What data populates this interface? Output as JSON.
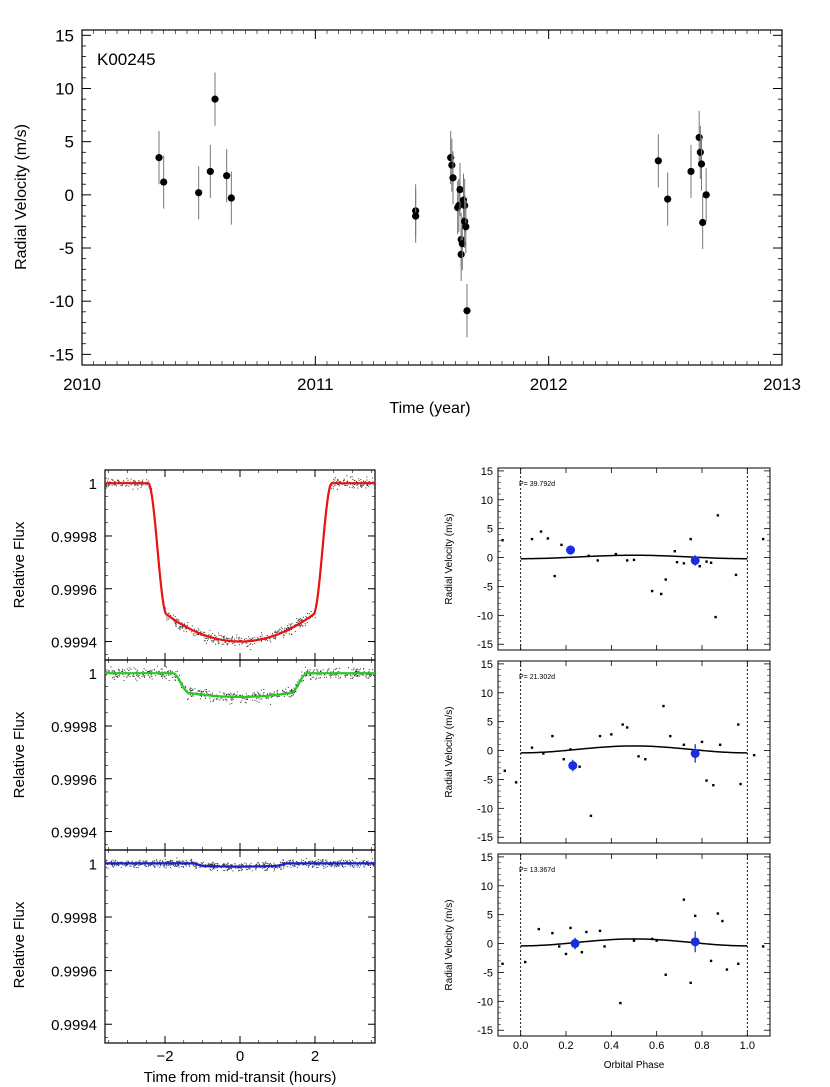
{
  "chart_data": [
    {
      "type": "scatter",
      "title": "K00245",
      "xlabel": "Time (year)",
      "ylabel": "Radial Velocity (m/s)",
      "xlim": [
        2010,
        2013
      ],
      "ylim": [
        -16,
        15.5
      ],
      "xticks": [
        2010,
        2011,
        2012,
        2013
      ],
      "xtick_labels": [
        "2010",
        "2011",
        "2012",
        "2013"
      ],
      "yticks": [
        15,
        10,
        5,
        0,
        -5,
        -10,
        -15
      ],
      "ytick_labels": [
        "15",
        "10",
        "5",
        "0",
        "-5",
        "-10",
        "-15"
      ],
      "points": [
        {
          "x": 2010.33,
          "y": 3.5,
          "err": 2.5
        },
        {
          "x": 2010.35,
          "y": 1.2,
          "err": 2.5
        },
        {
          "x": 2010.5,
          "y": 0.2,
          "err": 2.5
        },
        {
          "x": 2010.55,
          "y": 2.2,
          "err": 2.5
        },
        {
          "x": 2010.57,
          "y": 9.0,
          "err": 2.5
        },
        {
          "x": 2010.62,
          "y": 1.8,
          "err": 2.5
        },
        {
          "x": 2010.64,
          "y": -0.3,
          "err": 2.5
        },
        {
          "x": 2011.43,
          "y": -1.5,
          "err": 2.5
        },
        {
          "x": 2011.43,
          "y": -2.0,
          "err": 2.5
        },
        {
          "x": 2011.58,
          "y": 3.5,
          "err": 2.5
        },
        {
          "x": 2011.585,
          "y": 2.8,
          "err": 2.5
        },
        {
          "x": 2011.59,
          "y": 1.6,
          "err": 2.5
        },
        {
          "x": 2011.61,
          "y": -1.2,
          "err": 2.5
        },
        {
          "x": 2011.615,
          "y": -1.0,
          "err": 2.5
        },
        {
          "x": 2011.62,
          "y": 0.5,
          "err": 2.5
        },
        {
          "x": 2011.625,
          "y": -4.2,
          "err": 2.5
        },
        {
          "x": 2011.625,
          "y": -5.6,
          "err": 2.5
        },
        {
          "x": 2011.63,
          "y": -4.6,
          "err": 2.5
        },
        {
          "x": 2011.635,
          "y": -0.5,
          "err": 2.5
        },
        {
          "x": 2011.64,
          "y": -1.0,
          "err": 2.5
        },
        {
          "x": 2011.64,
          "y": -2.5,
          "err": 2.5
        },
        {
          "x": 2011.645,
          "y": -3.0,
          "err": 2.5
        },
        {
          "x": 2011.65,
          "y": -10.9,
          "err": 2.5
        },
        {
          "x": 2012.47,
          "y": 3.2,
          "err": 2.5
        },
        {
          "x": 2012.51,
          "y": -0.4,
          "err": 2.5
        },
        {
          "x": 2012.61,
          "y": 2.2,
          "err": 2.5
        },
        {
          "x": 2012.645,
          "y": 5.4,
          "err": 2.5
        },
        {
          "x": 2012.65,
          "y": 4.0,
          "err": 2.5
        },
        {
          "x": 2012.655,
          "y": 2.9,
          "err": 2.5
        },
        {
          "x": 2012.66,
          "y": -2.6,
          "err": 2.5
        },
        {
          "x": 2012.675,
          "y": 0.0,
          "err": 2.5
        }
      ]
    },
    {
      "type": "scatter",
      "subtype": "transit-light-curve",
      "title": "",
      "xlabel": "",
      "ylabel": "Relative Flux",
      "xlim": [
        -3.6,
        3.6
      ],
      "ylim": [
        0.99933,
        1.00005
      ],
      "xticks": [
        -2,
        0,
        2
      ],
      "yticks": [
        1,
        0.9998,
        0.9996,
        0.9994
      ],
      "ytick_labels": [
        "1",
        "0.9998",
        "0.9996",
        "0.9994"
      ],
      "model_color": "#ee1111",
      "model": {
        "depth": 0.0006,
        "half_duration_hours": 2.45,
        "ingress_hours": 0.5
      }
    },
    {
      "type": "scatter",
      "subtype": "transit-light-curve",
      "title": "",
      "xlabel": "",
      "ylabel": "Relative Flux",
      "xlim": [
        -3.6,
        3.6
      ],
      "ylim": [
        0.99933,
        1.00005
      ],
      "xticks": [
        -2,
        0,
        2
      ],
      "yticks": [
        1,
        0.9998,
        0.9996,
        0.9994
      ],
      "ytick_labels": [
        "1",
        "0.9998",
        "0.9996",
        "0.9994"
      ],
      "model_color": "#22cc22",
      "model": {
        "depth": 9e-05,
        "half_duration_hours": 1.8,
        "ingress_hours": 0.45
      }
    },
    {
      "type": "scatter",
      "subtype": "transit-light-curve",
      "title": "",
      "xlabel": "Time from mid-transit (hours)",
      "ylabel": "Relative Flux",
      "xlim": [
        -3.6,
        3.6
      ],
      "ylim": [
        0.99933,
        1.00005
      ],
      "xticks": [
        -2,
        0,
        2
      ],
      "xtick_labels": [
        "−2",
        "0",
        "2"
      ],
      "yticks": [
        1,
        0.9998,
        0.9996,
        0.9994
      ],
      "ytick_labels": [
        "1",
        "0.9998",
        "0.9996",
        "0.9994"
      ],
      "model_color": "#1a22cc",
      "model": {
        "depth": 1.2e-05,
        "half_duration_hours": 1.3,
        "ingress_hours": 0.4
      }
    },
    {
      "type": "scatter",
      "subtype": "phased-rv",
      "annotation": "P= 39.792d",
      "ylabel": "Radial Velocity (m/s)",
      "xlabel": "",
      "xlim": [
        -0.1,
        1.1
      ],
      "ylim": [
        -16,
        15.5
      ],
      "yticks": [
        15,
        10,
        5,
        0,
        -5,
        -10,
        -15
      ],
      "ytick_labels": [
        "15",
        "10",
        "5",
        "0",
        "-5",
        "-10",
        "-15"
      ],
      "amplitude": 0.5,
      "phase_offset": 0.0,
      "points": [
        [
          0.05,
          3.2
        ],
        [
          0.09,
          4.5
        ],
        [
          0.15,
          -3.2
        ],
        [
          0.12,
          3.3
        ],
        [
          0.18,
          2.2
        ],
        [
          0.3,
          0.3
        ],
        [
          0.34,
          -0.5
        ],
        [
          0.42,
          0.6
        ],
        [
          0.47,
          -0.5
        ],
        [
          0.5,
          -0.4
        ],
        [
          0.58,
          -5.8
        ],
        [
          0.62,
          -6.3
        ],
        [
          0.64,
          -3.8
        ],
        [
          0.68,
          1.1
        ],
        [
          0.69,
          -0.8
        ],
        [
          0.72,
          -1.0
        ],
        [
          0.75,
          3.2
        ],
        [
          0.79,
          -1.5
        ],
        [
          0.82,
          -0.7
        ],
        [
          0.84,
          -0.9
        ],
        [
          0.86,
          -10.3
        ],
        [
          0.87,
          7.3
        ],
        [
          0.95,
          -3.0
        ],
        [
          -0.08,
          3.0
        ],
        [
          1.07,
          3.2
        ]
      ],
      "binned": [
        {
          "x": 0.22,
          "y": 1.3,
          "err": 0.8
        },
        {
          "x": 0.77,
          "y": -0.5,
          "err": 0.9
        }
      ]
    },
    {
      "type": "scatter",
      "subtype": "phased-rv",
      "annotation": "P= 21.302d",
      "ylabel": "Radial Velocity (m/s)",
      "xlabel": "",
      "xlim": [
        -0.1,
        1.1
      ],
      "ylim": [
        -16,
        15.5
      ],
      "yticks": [
        15,
        10,
        5,
        0,
        -5,
        -10,
        -15
      ],
      "ytick_labels": [
        "15",
        "10",
        "5",
        "0",
        "-5",
        "-10",
        "-15"
      ],
      "amplitude": 1.0,
      "phase_offset": 0.25,
      "points": [
        [
          0.05,
          0.5
        ],
        [
          0.1,
          -0.5
        ],
        [
          0.14,
          2.5
        ],
        [
          0.19,
          -1.5
        ],
        [
          0.22,
          0.2
        ],
        [
          0.26,
          -2.8
        ],
        [
          0.31,
          -11.3
        ],
        [
          0.35,
          2.5
        ],
        [
          0.4,
          2.8
        ],
        [
          0.45,
          4.5
        ],
        [
          0.47,
          4.0
        ],
        [
          0.52,
          -1.0
        ],
        [
          0.55,
          -1.5
        ],
        [
          0.63,
          7.7
        ],
        [
          0.66,
          2.5
        ],
        [
          0.72,
          1.0
        ],
        [
          0.8,
          1.5
        ],
        [
          0.82,
          -5.2
        ],
        [
          0.85,
          -6.0
        ],
        [
          0.88,
          1.0
        ],
        [
          0.96,
          4.5
        ],
        [
          0.97,
          -5.8
        ],
        [
          -0.07,
          -3.5
        ],
        [
          -0.02,
          -5.5
        ],
        [
          1.03,
          -0.8
        ]
      ],
      "binned": [
        {
          "x": 0.23,
          "y": -2.6,
          "err": 1.0
        },
        {
          "x": 0.77,
          "y": -0.5,
          "err": 1.6
        }
      ]
    },
    {
      "type": "scatter",
      "subtype": "phased-rv",
      "annotation": "P= 13.367d",
      "ylabel": "Radial Velocity (m/s)",
      "xlabel": "Orbital Phase",
      "xlim": [
        -0.1,
        1.1
      ],
      "ylim": [
        -16,
        15.5
      ],
      "xticks": [
        0.0,
        0.2,
        0.4,
        0.6,
        0.8,
        1.0
      ],
      "xtick_labels": [
        "0.0",
        "0.2",
        "0.4",
        "0.6",
        "0.8",
        "1.0"
      ],
      "yticks": [
        15,
        10,
        5,
        0,
        -5,
        -10,
        -15
      ],
      "ytick_labels": [
        "15",
        "10",
        "5",
        "0",
        "-5",
        "-10",
        "-15"
      ],
      "amplitude": 1.0,
      "phase_offset": 0.25,
      "points": [
        [
          0.02,
          -3.2
        ],
        [
          0.08,
          2.5
        ],
        [
          0.14,
          1.8
        ],
        [
          0.17,
          -0.5
        ],
        [
          0.2,
          -1.8
        ],
        [
          0.22,
          2.7
        ],
        [
          0.27,
          -1.5
        ],
        [
          0.29,
          2.0
        ],
        [
          0.35,
          2.2
        ],
        [
          0.37,
          -0.5
        ],
        [
          0.44,
          -10.3
        ],
        [
          0.5,
          0.5
        ],
        [
          0.58,
          0.8
        ],
        [
          0.6,
          0.5
        ],
        [
          0.64,
          -5.4
        ],
        [
          0.72,
          7.6
        ],
        [
          0.75,
          -6.8
        ],
        [
          0.77,
          4.8
        ],
        [
          0.84,
          -3.0
        ],
        [
          0.87,
          5.2
        ],
        [
          0.89,
          3.9
        ],
        [
          0.91,
          -4.5
        ],
        [
          0.96,
          -3.5
        ],
        [
          -0.08,
          -3.5
        ],
        [
          1.07,
          -0.5
        ]
      ],
      "binned": [
        {
          "x": 0.24,
          "y": 0.0,
          "err": 1.0
        },
        {
          "x": 0.77,
          "y": 0.3,
          "err": 1.8
        }
      ]
    }
  ]
}
